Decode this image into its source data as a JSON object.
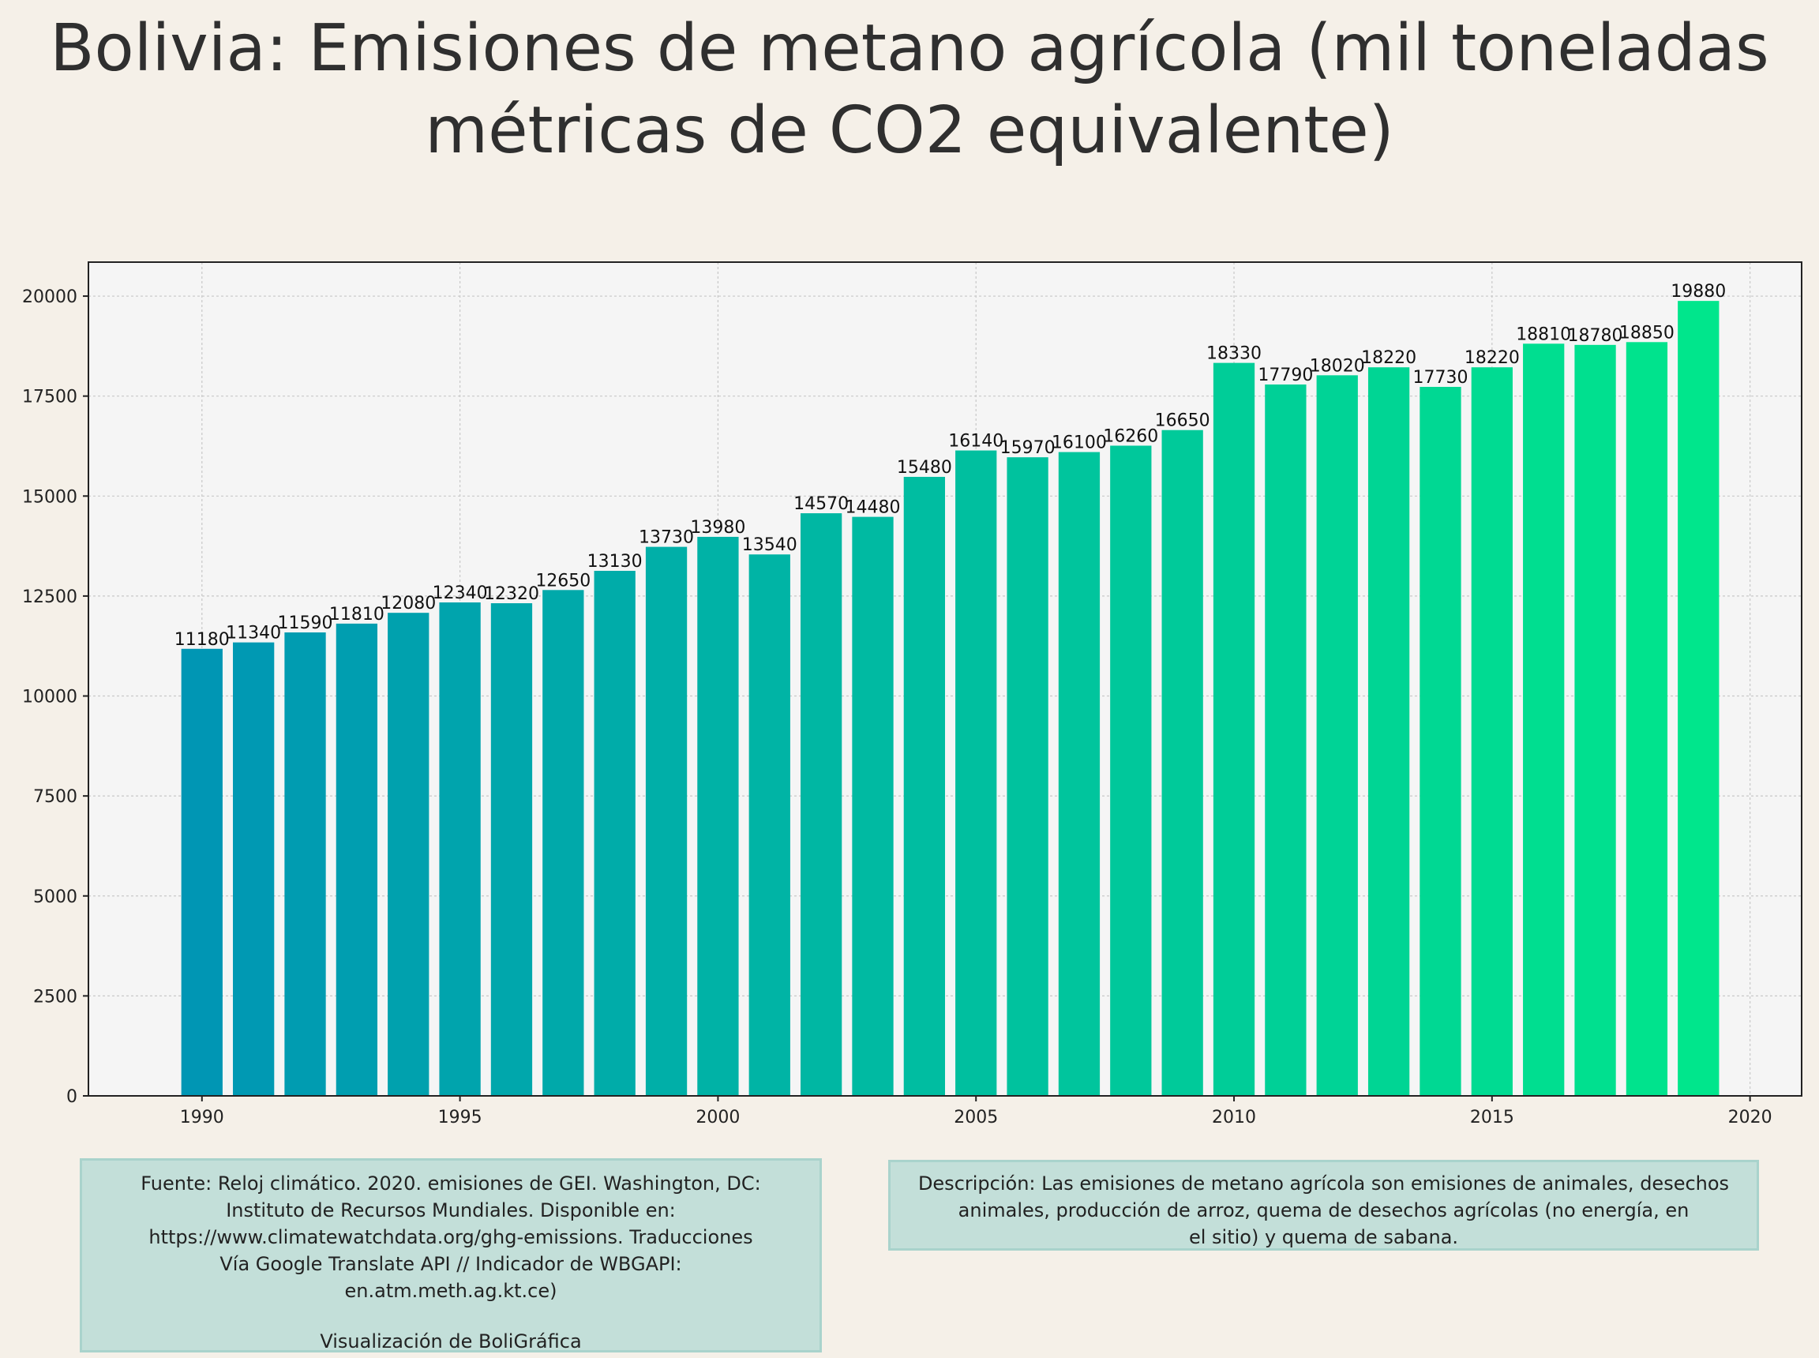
{
  "chart_data": {
    "type": "bar",
    "title": "Bolivia:  Emisiones de metano agrícola (mil toneladas métricas de CO2 equivalente)",
    "xlabel": "",
    "ylabel": "",
    "x": [
      1990,
      1991,
      1992,
      1993,
      1994,
      1995,
      1996,
      1997,
      1998,
      1999,
      2000,
      2001,
      2002,
      2003,
      2004,
      2005,
      2006,
      2007,
      2008,
      2009,
      2010,
      2011,
      2012,
      2013,
      2014,
      2015,
      2016,
      2017,
      2018,
      2019
    ],
    "values": [
      11180,
      11340,
      11590,
      11810,
      12080,
      12340,
      12320,
      12650,
      13130,
      13730,
      13980,
      13540,
      14570,
      14480,
      15480,
      16140,
      15970,
      16100,
      16260,
      16650,
      18330,
      17790,
      18020,
      18220,
      17730,
      18220,
      18810,
      18780,
      18850,
      19880
    ],
    "xlim": [
      1987.8,
      2021
    ],
    "ylim": [
      0,
      20850
    ],
    "xticks": [
      "1990",
      "1995",
      "2000",
      "2005",
      "2010",
      "2015",
      "2020"
    ],
    "yticks": [
      "0",
      "2500",
      "5000",
      "7500",
      "10000",
      "12500",
      "15000",
      "17500",
      "20000"
    ],
    "grid": true,
    "bar_color_start": "#0096b4",
    "bar_color_end": "#00e68c",
    "background": "#f5f5f5"
  },
  "source": {
    "lines": [
      "Fuente: Reloj climático. 2020. emisiones de GEI. Washington, DC:",
      "Instituto de Recursos Mundiales. Disponible en:",
      "https://www.climatewatchdata.org/ghg-emissions. Traducciones",
      "Vía Google Translate API // Indicador de WBGAPI:",
      "en.atm.meth.ag.kt.ce)"
    ],
    "credit": "Visualización de BoliGráfica"
  },
  "description": {
    "lines": [
      "Descripción: Las emisiones de metano agrícola son emisiones de animales, desechos",
      "animales, producción de arroz, quema de desechos agrícolas (no energía, en",
      "el sitio) y quema de sabana."
    ]
  }
}
